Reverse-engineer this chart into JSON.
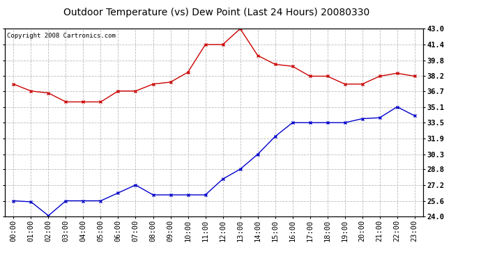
{
  "title": "Outdoor Temperature (vs) Dew Point (Last 24 Hours) 20080330",
  "copyright": "Copyright 2008 Cartronics.com",
  "x_labels": [
    "00:00",
    "01:00",
    "02:00",
    "03:00",
    "04:00",
    "05:00",
    "06:00",
    "07:00",
    "08:00",
    "09:00",
    "10:00",
    "11:00",
    "12:00",
    "13:00",
    "14:00",
    "15:00",
    "16:00",
    "17:00",
    "18:00",
    "19:00",
    "20:00",
    "21:00",
    "22:00",
    "23:00"
  ],
  "temp_data": [
    37.4,
    36.7,
    36.5,
    35.6,
    35.6,
    35.6,
    36.7,
    36.7,
    37.4,
    37.6,
    38.6,
    41.4,
    41.4,
    43.0,
    40.3,
    39.4,
    39.2,
    38.2,
    38.2,
    37.4,
    37.4,
    38.2,
    38.5,
    38.2
  ],
  "dew_data": [
    25.6,
    25.5,
    24.1,
    25.6,
    25.6,
    25.6,
    26.4,
    27.2,
    26.2,
    26.2,
    26.2,
    26.2,
    27.8,
    28.8,
    30.3,
    32.1,
    33.5,
    33.5,
    33.5,
    33.5,
    33.9,
    34.0,
    35.1,
    34.2
  ],
  "temp_color": "#cc0000",
  "dew_color": "#0000cc",
  "bg_color": "#ffffff",
  "plot_bg_color": "#ffffff",
  "grid_color": "#bbbbbb",
  "ylim_min": 24.0,
  "ylim_max": 43.0,
  "yticks": [
    24.0,
    25.6,
    27.2,
    28.8,
    30.3,
    31.9,
    33.5,
    35.1,
    36.7,
    38.2,
    39.8,
    41.4,
    43.0
  ],
  "title_fontsize": 10,
  "copyright_fontsize": 6.5,
  "tick_fontsize": 7.5,
  "marker": "x",
  "marker_size": 3.5,
  "line_width": 1.0
}
